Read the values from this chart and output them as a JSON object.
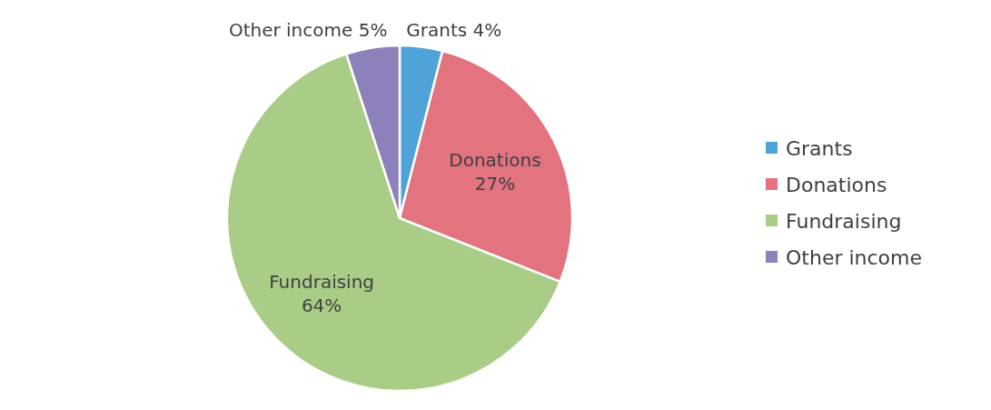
{
  "chart_data": {
    "type": "pie",
    "categories": [
      "Grants",
      "Donations",
      "Fundraising",
      "Other income"
    ],
    "values": [
      4,
      27,
      64,
      5
    ],
    "colors": [
      "#4fa3d8",
      "#e3737f",
      "#a9cd86",
      "#8e80ba"
    ],
    "value_labels": [
      "4%",
      "27%",
      "64%",
      "5%"
    ],
    "legend": "right"
  }
}
